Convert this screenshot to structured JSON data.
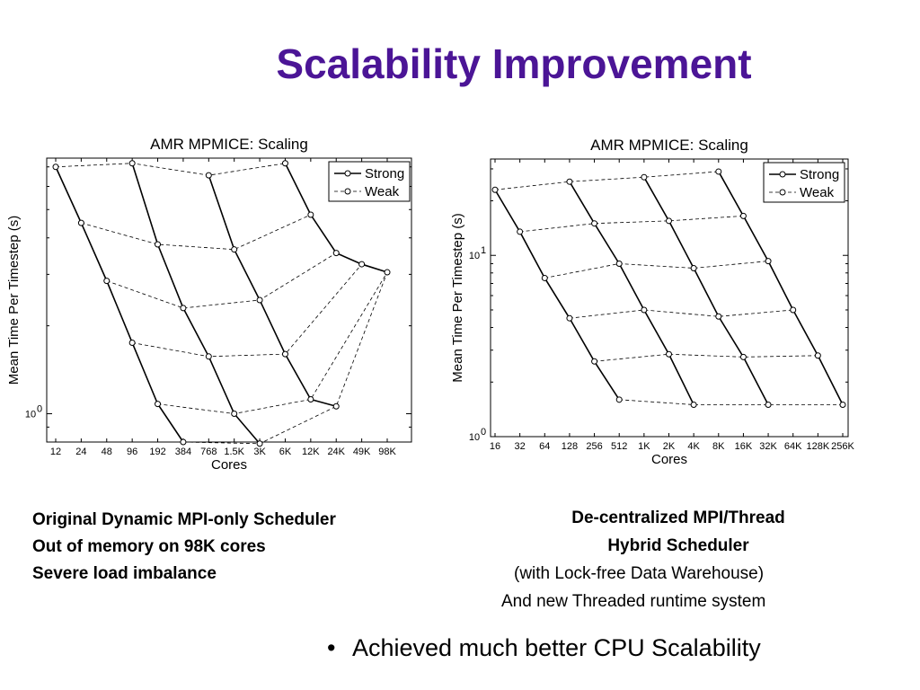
{
  "slide": {
    "title": "Scalability Improvement",
    "left_caption": [
      "Original Dynamic MPI-only Scheduler",
      "Out of memory on 98K cores",
      "Severe  load imbalance"
    ],
    "right_caption": [
      "De-centralized MPI/Thread",
      "Hybrid Scheduler",
      "(with Lock-free Data Warehouse)",
      "And new Threaded runtime system"
    ],
    "bullet_marker": "•",
    "bullet": "Achieved much better CPU Scalability"
  },
  "chart_data": [
    {
      "type": "line",
      "title": "AMR MPMICE: Scaling",
      "xlabel": "Cores",
      "ylabel": "Mean Time Per Timestep (s)",
      "yscale": "log",
      "ylim": [
        0.8,
        7.5
      ],
      "y_tick_label": {
        "base": "10",
        "exp": "0",
        "value": 1
      },
      "categories": [
        "12",
        "24",
        "48",
        "96",
        "192",
        "384",
        "768",
        "1.5K",
        "3K",
        "6K",
        "12K",
        "24K",
        "49K",
        "98K"
      ],
      "legend": {
        "position": "top-right",
        "entries": [
          {
            "name": "Strong",
            "style": "solid"
          },
          {
            "name": "Weak",
            "style": "dashed"
          }
        ]
      },
      "series": [
        {
          "name": "Strong",
          "style": "solid",
          "points": [
            [
              0,
              7.0
            ],
            [
              1,
              4.5
            ],
            [
              2,
              2.85
            ],
            [
              3,
              1.75
            ],
            [
              4,
              1.08
            ],
            [
              5,
              0.8
            ]
          ]
        },
        {
          "name": "Strong",
          "style": "solid",
          "points": [
            [
              3,
              7.2
            ],
            [
              4,
              3.8
            ],
            [
              5,
              2.3
            ],
            [
              6,
              1.57
            ],
            [
              7,
              1.0
            ],
            [
              8,
              0.79
            ]
          ]
        },
        {
          "name": "Strong",
          "style": "solid",
          "points": [
            [
              6,
              6.55
            ],
            [
              7,
              3.65
            ],
            [
              8,
              2.45
            ],
            [
              9,
              1.6
            ],
            [
              10,
              1.12
            ]
          ]
        },
        {
          "name": "Strong",
          "style": "solid",
          "points": [
            [
              9,
              7.2
            ],
            [
              10,
              4.8
            ],
            [
              11,
              3.55
            ],
            [
              12,
              3.25
            ],
            [
              13,
              3.05
            ]
          ]
        },
        {
          "name": "Strong",
          "style": "solid",
          "points": [
            [
              10,
              1.12
            ],
            [
              11,
              1.06
            ]
          ]
        },
        {
          "name": "Weak",
          "style": "dashed",
          "points": [
            [
              0,
              7.0
            ],
            [
              3,
              7.2
            ],
            [
              6,
              6.55
            ],
            [
              9,
              7.2
            ]
          ]
        },
        {
          "name": "Weak",
          "style": "dashed",
          "points": [
            [
              1,
              4.5
            ],
            [
              4,
              3.8
            ],
            [
              7,
              3.65
            ],
            [
              10,
              4.8
            ]
          ]
        },
        {
          "name": "Weak",
          "style": "dashed",
          "points": [
            [
              2,
              2.85
            ],
            [
              5,
              2.3
            ],
            [
              8,
              2.45
            ],
            [
              11,
              3.55
            ]
          ]
        },
        {
          "name": "Weak",
          "style": "dashed",
          "points": [
            [
              3,
              1.75
            ],
            [
              6,
              1.57
            ],
            [
              9,
              1.6
            ],
            [
              12,
              3.25
            ]
          ]
        },
        {
          "name": "Weak",
          "style": "dashed",
          "points": [
            [
              4,
              1.08
            ],
            [
              7,
              1.0
            ],
            [
              10,
              1.12
            ],
            [
              13,
              3.05
            ]
          ]
        },
        {
          "name": "Weak",
          "style": "dashed",
          "points": [
            [
              5,
              0.8
            ],
            [
              8,
              0.79
            ],
            [
              11,
              1.06
            ],
            [
              13,
              3.05
            ]
          ]
        }
      ]
    },
    {
      "type": "line",
      "title": "AMR MPMICE: Scaling",
      "xlabel": "Cores",
      "ylabel": "Mean Time Per Timestep (s)",
      "yscale": "log",
      "ylim": [
        1,
        34
      ],
      "y_tick_labels": [
        {
          "base": "10",
          "exp": "0",
          "value": 1
        },
        {
          "base": "10",
          "exp": "1",
          "value": 10
        }
      ],
      "categories": [
        "16",
        "32",
        "64",
        "128",
        "256",
        "512",
        "1K",
        "2K",
        "4K",
        "8K",
        "16K",
        "32K",
        "64K",
        "128K",
        "256K"
      ],
      "legend": {
        "position": "top-right",
        "entries": [
          {
            "name": "Strong",
            "style": "solid"
          },
          {
            "name": "Weak",
            "style": "dashed"
          }
        ]
      },
      "series": [
        {
          "name": "Strong",
          "style": "solid",
          "points": [
            [
              0,
              23
            ],
            [
              1,
              13.5
            ],
            [
              2,
              7.5
            ],
            [
              3,
              4.5
            ],
            [
              4,
              2.6
            ],
            [
              5,
              1.6
            ]
          ]
        },
        {
          "name": "Strong",
          "style": "solid",
          "points": [
            [
              3,
              25.5
            ],
            [
              4,
              15
            ],
            [
              5,
              9
            ],
            [
              6,
              5
            ],
            [
              7,
              2.85
            ],
            [
              8,
              1.5
            ]
          ]
        },
        {
          "name": "Strong",
          "style": "solid",
          "points": [
            [
              6,
              27
            ],
            [
              7,
              15.5
            ],
            [
              8,
              8.5
            ],
            [
              9,
              4.6
            ],
            [
              10,
              2.75
            ],
            [
              11,
              1.5
            ]
          ]
        },
        {
          "name": "Strong",
          "style": "solid",
          "points": [
            [
              9,
              29
            ],
            [
              10,
              16.5
            ],
            [
              11,
              9.3
            ],
            [
              12,
              5
            ],
            [
              13,
              2.8
            ],
            [
              14,
              1.5
            ]
          ]
        },
        {
          "name": "Weak",
          "style": "dashed",
          "points": [
            [
              0,
              23
            ],
            [
              3,
              25.5
            ],
            [
              6,
              27
            ],
            [
              9,
              29
            ]
          ]
        },
        {
          "name": "Weak",
          "style": "dashed",
          "points": [
            [
              1,
              13.5
            ],
            [
              4,
              15
            ],
            [
              7,
              15.5
            ],
            [
              10,
              16.5
            ]
          ]
        },
        {
          "name": "Weak",
          "style": "dashed",
          "points": [
            [
              2,
              7.5
            ],
            [
              5,
              9
            ],
            [
              8,
              8.5
            ],
            [
              11,
              9.3
            ]
          ]
        },
        {
          "name": "Weak",
          "style": "dashed",
          "points": [
            [
              3,
              4.5
            ],
            [
              6,
              5
            ],
            [
              9,
              4.6
            ],
            [
              12,
              5
            ]
          ]
        },
        {
          "name": "Weak",
          "style": "dashed",
          "points": [
            [
              4,
              2.6
            ],
            [
              7,
              2.85
            ],
            [
              10,
              2.75
            ],
            [
              13,
              2.8
            ]
          ]
        },
        {
          "name": "Weak",
          "style": "dashed",
          "points": [
            [
              5,
              1.6
            ],
            [
              8,
              1.5
            ],
            [
              11,
              1.5
            ],
            [
              14,
              1.5
            ]
          ]
        }
      ]
    }
  ]
}
